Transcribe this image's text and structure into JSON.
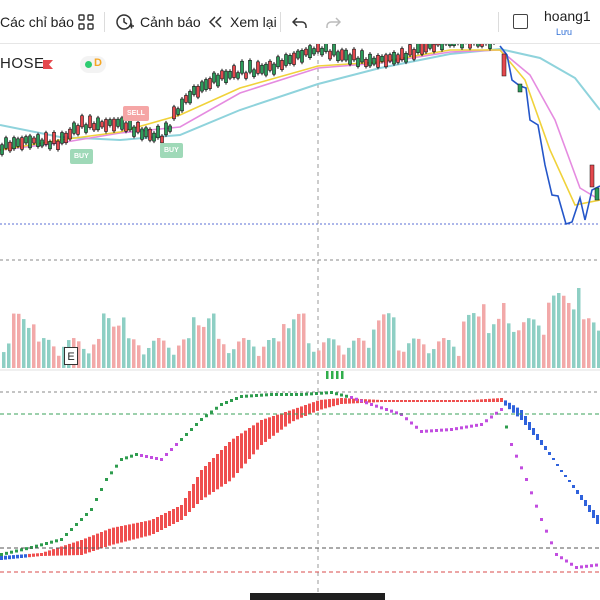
{
  "toolbar": {
    "indicators_label": "Các chỉ báo",
    "alerts_label": "Cảnh báo",
    "replay_label": "Xem lại",
    "user_name": "hoang1",
    "user_sub": "Lưu"
  },
  "symbol": {
    "exchange": "HOSE",
    "badge": "D"
  },
  "signals": [
    {
      "type": "SELL",
      "label": "SELL"
    },
    {
      "type": "BUY",
      "label": "BUY"
    },
    {
      "type": "BUY",
      "label": "BUY"
    }
  ],
  "marker": "E",
  "colors": {
    "up": "#2b9c5a",
    "down": "#e5484d",
    "volume_up": "#8ecfc4",
    "volume_down": "#f2a9a9",
    "line_blue": "#2456c9",
    "ma_yellow": "#f0d23a",
    "ma_pink": "#e58be0",
    "ma_cyan": "#8fd3dc",
    "hist_red": "#ef4f4f",
    "hist_blue": "#2f62dc",
    "dots_green": "#2e9c4e",
    "dots_purple": "#c24de0",
    "dash_red": "#d94b4b",
    "dash_green": "#3aa05a"
  },
  "icons": [
    "indicators-icon",
    "alert-icon",
    "replay-icon",
    "undo-icon",
    "redo-icon",
    "user-checkbox-icon",
    "crosshair-line"
  ]
}
